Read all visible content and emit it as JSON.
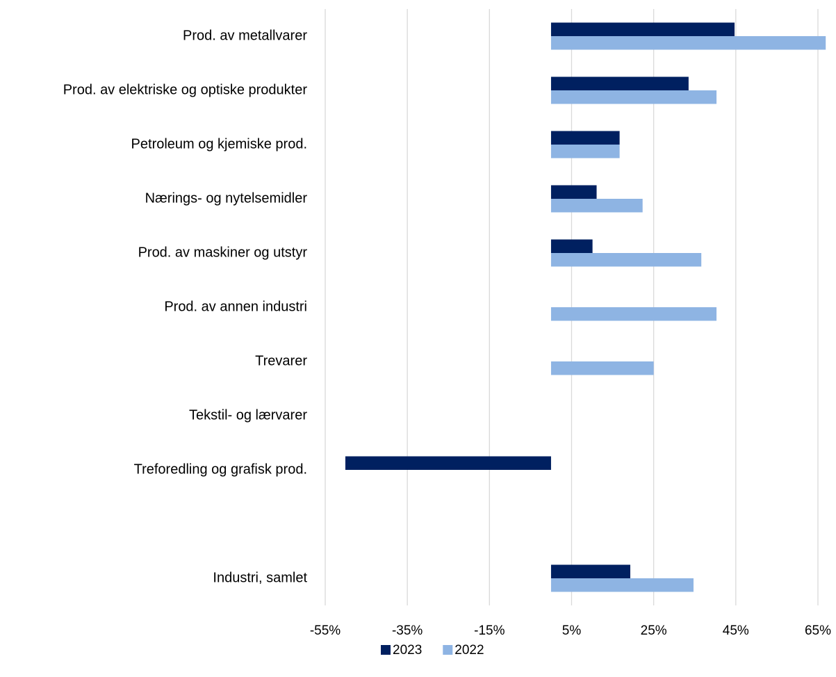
{
  "chart_data": {
    "type": "barh",
    "categories": [
      "Prod. av metallvarer",
      "Prod. av elektriske og optiske produkter",
      "Petroleum og kjemiske prod.",
      "Nærings- og nytelsemidler",
      "Prod. av maskiner og utstyr",
      "Prod. av annen industri",
      "Trevarer",
      "Tekstil- og lærvarer",
      "Treforedling og grafisk prod.",
      null,
      "Industri, samlet"
    ],
    "series": [
      {
        "name": "2023",
        "color": "#002060",
        "values": [
          44.7,
          33.5,
          16.7,
          11.1,
          10.1,
          null,
          null,
          null,
          -50.1,
          null,
          19.3
        ]
      },
      {
        "name": "2022",
        "color": "#8eb4e3",
        "values": [
          66.9,
          40.3,
          16.7,
          22.3,
          36.6,
          40.3,
          25.0,
          null,
          null,
          null,
          34.7
        ]
      }
    ],
    "xlim": [
      -55,
      67
    ],
    "xticks": [
      {
        "value": -55,
        "label": "-55%"
      },
      {
        "value": -35,
        "label": "-35%"
      },
      {
        "value": -15,
        "label": "-15%"
      },
      {
        "value": 5,
        "label": "5%"
      },
      {
        "value": 25,
        "label": "25%"
      },
      {
        "value": 45,
        "label": "45%"
      },
      {
        "value": 65,
        "label": "65%"
      }
    ],
    "grid": true,
    "legend": "bottom"
  }
}
